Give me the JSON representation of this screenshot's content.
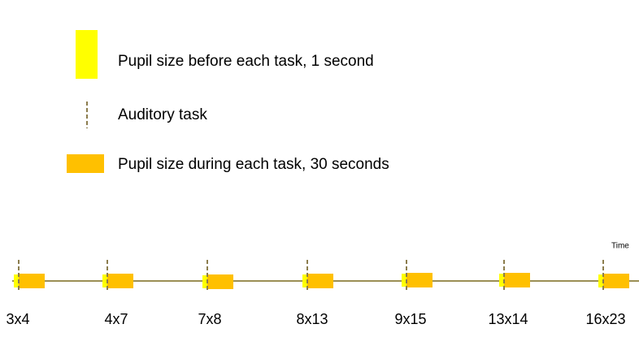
{
  "legend": [
    {
      "label": "Pupil size before each task, 1 second"
    },
    {
      "label": "Auditory task"
    },
    {
      "label": "Pupil size during each task, 30 seconds"
    }
  ],
  "timeline": {
    "axis_label": "Time",
    "tasks": [
      {
        "label": "3x4"
      },
      {
        "label": "4x7"
      },
      {
        "label": "7x8"
      },
      {
        "label": "8x13"
      },
      {
        "label": "9x15"
      },
      {
        "label": "13x14"
      },
      {
        "label": "16x23"
      }
    ]
  }
}
